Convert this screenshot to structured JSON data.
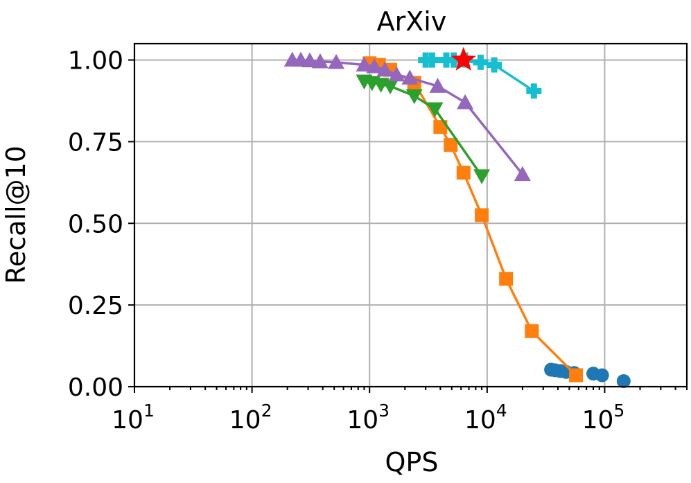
{
  "chart_data": {
    "type": "line",
    "title": "ArXiv",
    "xlabel": "QPS",
    "ylabel": "Recall@10",
    "xscale": "log",
    "xlim": [
      10,
      500000
    ],
    "ylim": [
      0,
      1.05
    ],
    "grid": true,
    "x_ticks": [
      {
        "base": "10",
        "exp": "1",
        "value": 10
      },
      {
        "base": "10",
        "exp": "2",
        "value": 100
      },
      {
        "base": "10",
        "exp": "3",
        "value": 1000
      },
      {
        "base": "10",
        "exp": "4",
        "value": 10000
      },
      {
        "base": "10",
        "exp": "5",
        "value": 100000
      }
    ],
    "y_ticks": [
      {
        "label": "0.00",
        "value": 0.0
      },
      {
        "label": "0.25",
        "value": 0.25
      },
      {
        "label": "0.50",
        "value": 0.5
      },
      {
        "label": "0.75",
        "value": 0.75
      },
      {
        "label": "1.00",
        "value": 1.0
      }
    ],
    "series": [
      {
        "name": "blue-circles",
        "color": "#1f77b4",
        "marker": "circle",
        "line": false,
        "x": [
          35000,
          38000,
          42000,
          47000,
          55000,
          80000,
          95000,
          145000
        ],
        "y": [
          0.052,
          0.05,
          0.048,
          0.045,
          0.042,
          0.04,
          0.035,
          0.017
        ]
      },
      {
        "name": "orange-squares",
        "color": "#ff7f0e",
        "marker": "square",
        "line": true,
        "x": [
          1000,
          1200,
          1500,
          2400,
          4000,
          4900,
          6300,
          9000,
          14500,
          24000,
          57000
        ],
        "y": [
          0.99,
          0.985,
          0.97,
          0.93,
          0.795,
          0.74,
          0.655,
          0.525,
          0.33,
          0.17,
          0.035
        ]
      },
      {
        "name": "green-triangles-down",
        "color": "#2ca02c",
        "marker": "triangle-down",
        "line": true,
        "x": [
          900,
          1050,
          1250,
          1500,
          2400,
          3600,
          9000
        ],
        "y": [
          0.935,
          0.93,
          0.925,
          0.92,
          0.89,
          0.85,
          0.645
        ]
      },
      {
        "name": "purple-triangles-up",
        "color": "#9467bd",
        "marker": "triangle-up",
        "line": true,
        "x": [
          220,
          260,
          310,
          380,
          520,
          900,
          1100,
          1350,
          1700,
          2200,
          3800,
          6500,
          20000
        ],
        "y": [
          1.0,
          1.0,
          0.998,
          0.995,
          0.993,
          0.985,
          0.98,
          0.97,
          0.955,
          0.945,
          0.92,
          0.87,
          0.65
        ]
      },
      {
        "name": "cyan-plus",
        "color": "#17becf",
        "marker": "plus",
        "line": true,
        "x": [
          3000,
          3400,
          4500,
          5200,
          6500,
          8800,
          11500,
          25000
        ],
        "y": [
          1.0,
          1.0,
          1.0,
          1.0,
          1.0,
          0.993,
          0.985,
          0.905
        ]
      },
      {
        "name": "red-star",
        "color": "#ff0000",
        "marker": "star",
        "line": false,
        "x": [
          6300
        ],
        "y": [
          1.0
        ]
      }
    ]
  }
}
